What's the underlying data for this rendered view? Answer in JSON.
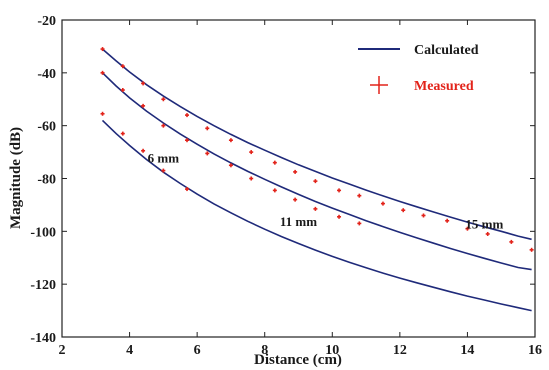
{
  "chart_data": {
    "type": "line",
    "title": "",
    "xlabel": "Distance (cm)",
    "ylabel": "Magnitude (dB)",
    "xlim": [
      2,
      16
    ],
    "ylim": [
      -140,
      -20
    ],
    "xticks": [
      2,
      4,
      6,
      8,
      10,
      12,
      14,
      16
    ],
    "yticks": [
      -20,
      -40,
      -60,
      -80,
      -100,
      -120,
      -140
    ],
    "grid": false,
    "legend_position": "top-right",
    "legend": {
      "calculated": "Calculated",
      "measured": "Measured"
    },
    "colors": {
      "calculated": "#1f2a7a",
      "measured": "#e2231a",
      "measured_label": "#e2231a"
    },
    "series": [
      {
        "group": "15 mm",
        "kind": "calculated",
        "x": [
          3.2,
          3.6,
          4,
          4.5,
          5,
          5.5,
          6,
          6.5,
          7,
          7.5,
          8,
          8.5,
          9,
          9.5,
          10,
          10.5,
          11,
          11.5,
          12,
          12.5,
          13,
          13.5,
          14,
          14.5,
          15,
          15.5,
          15.9
        ],
        "y": [
          -31,
          -35.5,
          -39.7,
          -44.5,
          -48.8,
          -52.8,
          -56.5,
          -60,
          -63.3,
          -66.4,
          -69.3,
          -72.1,
          -74.8,
          -77.3,
          -79.8,
          -82.1,
          -84.4,
          -86.6,
          -88.7,
          -90.7,
          -92.7,
          -94.6,
          -96.5,
          -98.3,
          -100,
          -101.8,
          -103
        ]
      },
      {
        "group": "11 mm",
        "kind": "calculated",
        "x": [
          3.2,
          3.6,
          4,
          4.5,
          5,
          5.5,
          6,
          6.5,
          7,
          7.5,
          8,
          8.5,
          9,
          9.5,
          10,
          10.5,
          11,
          11.5,
          12,
          12.5,
          13,
          13.5,
          14,
          14.5,
          15,
          15.5,
          15.9
        ],
        "y": [
          -40,
          -45,
          -49.5,
          -54.5,
          -59,
          -63.2,
          -67,
          -70.7,
          -74.1,
          -77.3,
          -80.3,
          -83.2,
          -86,
          -88.7,
          -91.2,
          -93.6,
          -96,
          -98.2,
          -100.4,
          -102.5,
          -104.5,
          -106.5,
          -108.4,
          -110.2,
          -112,
          -113.7,
          -114.5
        ]
      },
      {
        "group": "6 mm",
        "kind": "calculated",
        "x": [
          3.2,
          3.6,
          4,
          4.5,
          5,
          5.5,
          6,
          6.5,
          7,
          7.5,
          8,
          8.5,
          9,
          9.5,
          10,
          10.5,
          11,
          11.5,
          12,
          12.5,
          13,
          13.5,
          14,
          14.5,
          15,
          15.5,
          15.9
        ],
        "y": [
          -58,
          -63,
          -67.5,
          -72.8,
          -77.6,
          -81.9,
          -85.9,
          -89.6,
          -93,
          -96.2,
          -99.2,
          -102,
          -104.6,
          -107.1,
          -109.5,
          -111.7,
          -113.8,
          -115.8,
          -117.7,
          -119.5,
          -121.2,
          -122.9,
          -124.5,
          -126,
          -127.5,
          -128.9,
          -130
        ]
      },
      {
        "group": "15 mm",
        "kind": "measured",
        "x": [
          3.2,
          3.8,
          4.4,
          5.0,
          5.7,
          6.3,
          7.0,
          7.6,
          8.3,
          8.9,
          9.5,
          10.2,
          10.8,
          11.5,
          12.1,
          12.7,
          13.4,
          14.0,
          14.6,
          15.3,
          15.9
        ],
        "y": [
          -31,
          -37.5,
          -44,
          -50,
          -56,
          -61,
          -65.5,
          -70,
          -74,
          -77.5,
          -81,
          -84.5,
          -86.5,
          -89.5,
          -92,
          -94,
          -96,
          -99,
          -101,
          -104,
          -107
        ]
      },
      {
        "group": "11 mm",
        "kind": "measured",
        "x": [
          3.2,
          3.8,
          4.4,
          5.0,
          5.7,
          6.3,
          7.0,
          7.6,
          8.3,
          8.9,
          9.5,
          10.2,
          10.8
        ],
        "y": [
          -40,
          -46.5,
          -52.5,
          -60,
          -65.5,
          -70.5,
          -75,
          -80,
          -84.5,
          -88,
          -91.5,
          -94.5,
          -97
        ]
      },
      {
        "group": "6 mm",
        "kind": "measured",
        "x": [
          3.2,
          3.8,
          4.4,
          5.0,
          5.7
        ],
        "y": [
          -55.5,
          -63,
          -69.5,
          -77,
          -84
        ]
      }
    ],
    "annotations": [
      {
        "text": "6 mm",
        "x": 5.0,
        "y": -74
      },
      {
        "text": "11 mm",
        "x": 9.0,
        "y": -98
      },
      {
        "text": "15 mm",
        "x": 14.5,
        "y": -99
      }
    ]
  }
}
